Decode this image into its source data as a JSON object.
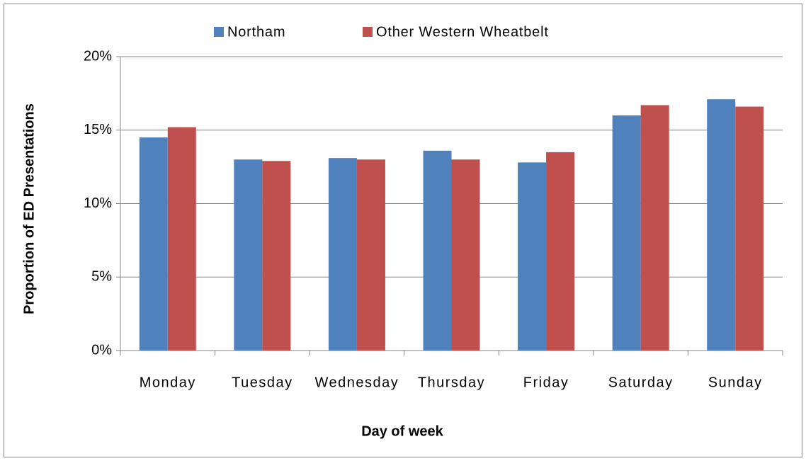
{
  "chart_data": {
    "type": "bar",
    "y_label": "Proportion of ED Presentations",
    "x_label": "Day of week",
    "categories": [
      "Monday",
      "Tuesday",
      "Wednesday",
      "Thursday",
      "Friday",
      "Saturday",
      "Sunday"
    ],
    "series": [
      {
        "name": "Northam",
        "color": "#4f81bd",
        "values": [
          14.5,
          13.0,
          13.1,
          13.6,
          12.8,
          16.0,
          17.1
        ]
      },
      {
        "name": "Other Western Wheatbelt",
        "color": "#c0504d",
        "values": [
          15.2,
          12.9,
          13.0,
          13.0,
          13.5,
          16.7,
          16.6
        ]
      }
    ],
    "ylim": [
      0,
      20
    ],
    "yticks": [
      {
        "value": 0,
        "label": "0%"
      },
      {
        "value": 5,
        "label": "5%"
      },
      {
        "value": 10,
        "label": "10%"
      },
      {
        "value": 15,
        "label": "15%"
      },
      {
        "value": 20,
        "label": "20%"
      }
    ],
    "grid": true,
    "legend": "top"
  }
}
